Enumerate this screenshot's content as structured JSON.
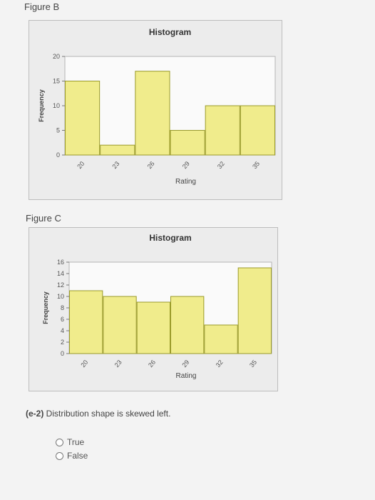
{
  "figures": {
    "b_label": "Figure B",
    "c_label": "Figure C"
  },
  "chart_data": [
    {
      "type": "bar",
      "title": "Histogram",
      "xlabel": "Rating",
      "ylabel": "Frequency",
      "categories": [
        "20",
        "23",
        "26",
        "29",
        "32",
        "35"
      ],
      "values": [
        15,
        2,
        17,
        5,
        10,
        10
      ],
      "ylim": [
        0,
        20
      ],
      "yticks": [
        0,
        5,
        10,
        15,
        20
      ],
      "bar_color": "#f0ec8c",
      "bar_stroke": "#9a9a2a"
    },
    {
      "type": "bar",
      "title": "Histogram",
      "xlabel": "Rating",
      "ylabel": "Frequency",
      "categories": [
        "20",
        "23",
        "26",
        "29",
        "32",
        "35"
      ],
      "values": [
        11,
        10,
        9,
        10,
        5,
        15
      ],
      "ylim": [
        0,
        16
      ],
      "yticks": [
        0,
        2,
        4,
        6,
        8,
        10,
        12,
        14,
        16
      ],
      "bar_color": "#f0ec8c",
      "bar_stroke": "#9a9a2a"
    }
  ],
  "question": {
    "prefix": "(e-2)",
    "text": " Distribution shape is skewed left."
  },
  "options": [
    "True",
    "False"
  ]
}
